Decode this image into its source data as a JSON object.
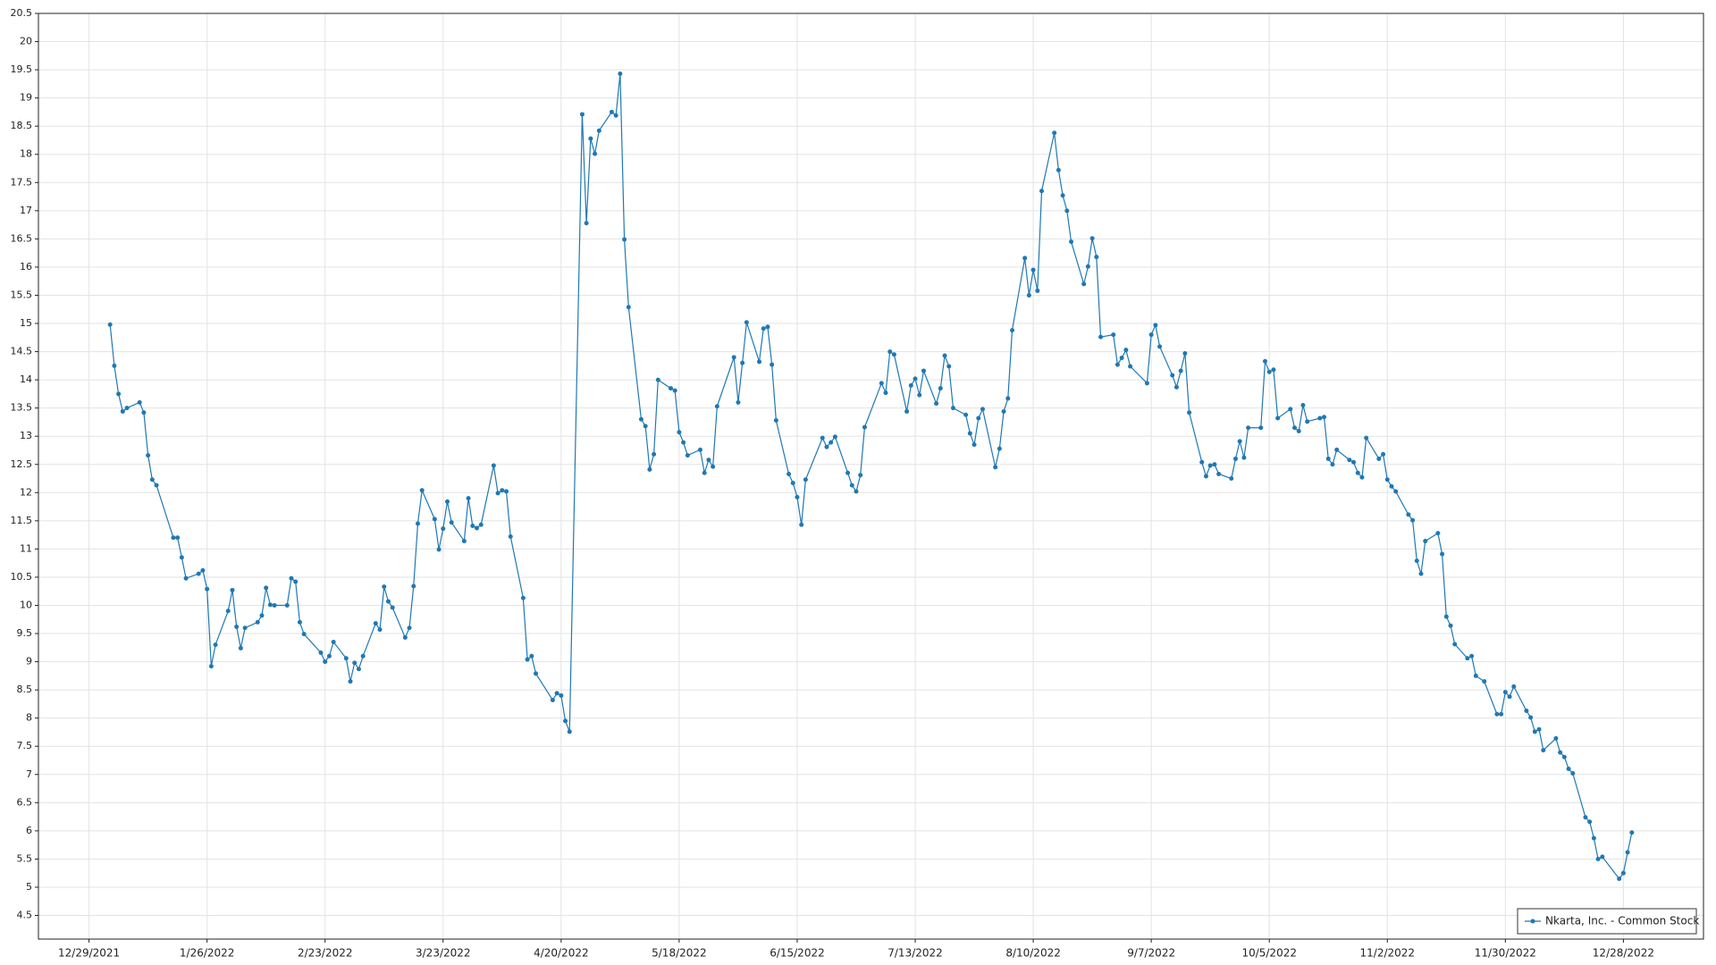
{
  "chart_data": {
    "type": "line",
    "x": [
      "2022-01-03",
      "2022-01-04",
      "2022-01-05",
      "2022-01-06",
      "2022-01-07",
      "2022-01-10",
      "2022-01-11",
      "2022-01-12",
      "2022-01-13",
      "2022-01-14",
      "2022-01-18",
      "2022-01-19",
      "2022-01-20",
      "2022-01-21",
      "2022-01-24",
      "2022-01-25",
      "2022-01-26",
      "2022-01-27",
      "2022-01-28",
      "2022-01-31",
      "2022-02-01",
      "2022-02-02",
      "2022-02-03",
      "2022-02-04",
      "2022-02-07",
      "2022-02-08",
      "2022-02-09",
      "2022-02-10",
      "2022-02-11",
      "2022-02-14",
      "2022-02-15",
      "2022-02-16",
      "2022-02-17",
      "2022-02-18",
      "2022-02-22",
      "2022-02-23",
      "2022-02-24",
      "2022-02-25",
      "2022-02-28",
      "2022-03-01",
      "2022-03-02",
      "2022-03-03",
      "2022-03-04",
      "2022-03-07",
      "2022-03-08",
      "2022-03-09",
      "2022-03-10",
      "2022-03-11",
      "2022-03-14",
      "2022-03-15",
      "2022-03-16",
      "2022-03-17",
      "2022-03-18",
      "2022-03-21",
      "2022-03-22",
      "2022-03-23",
      "2022-03-24",
      "2022-03-25",
      "2022-03-28",
      "2022-03-29",
      "2022-03-30",
      "2022-03-31",
      "2022-04-01",
      "2022-04-04",
      "2022-04-05",
      "2022-04-06",
      "2022-04-07",
      "2022-04-08",
      "2022-04-11",
      "2022-04-12",
      "2022-04-13",
      "2022-04-14",
      "2022-04-18",
      "2022-04-19",
      "2022-04-20",
      "2022-04-21",
      "2022-04-22",
      "2022-04-25",
      "2022-04-26",
      "2022-04-27",
      "2022-04-28",
      "2022-04-29",
      "2022-05-02",
      "2022-05-03",
      "2022-05-04",
      "2022-05-05",
      "2022-05-06",
      "2022-05-09",
      "2022-05-10",
      "2022-05-11",
      "2022-05-12",
      "2022-05-13",
      "2022-05-16",
      "2022-05-17",
      "2022-05-18",
      "2022-05-19",
      "2022-05-20",
      "2022-05-23",
      "2022-05-24",
      "2022-05-25",
      "2022-05-26",
      "2022-05-27",
      "2022-05-31",
      "2022-06-01",
      "2022-06-02",
      "2022-06-03",
      "2022-06-06",
      "2022-06-07",
      "2022-06-08",
      "2022-06-09",
      "2022-06-10",
      "2022-06-13",
      "2022-06-14",
      "2022-06-15",
      "2022-06-16",
      "2022-06-17",
      "2022-06-21",
      "2022-06-22",
      "2022-06-23",
      "2022-06-24",
      "2022-06-27",
      "2022-06-28",
      "2022-06-29",
      "2022-06-30",
      "2022-07-01",
      "2022-07-05",
      "2022-07-06",
      "2022-07-07",
      "2022-07-08",
      "2022-07-11",
      "2022-07-12",
      "2022-07-13",
      "2022-07-14",
      "2022-07-15",
      "2022-07-18",
      "2022-07-19",
      "2022-07-20",
      "2022-07-21",
      "2022-07-22",
      "2022-07-25",
      "2022-07-26",
      "2022-07-27",
      "2022-07-28",
      "2022-07-29",
      "2022-08-01",
      "2022-08-02",
      "2022-08-03",
      "2022-08-04",
      "2022-08-05",
      "2022-08-08",
      "2022-08-09",
      "2022-08-10",
      "2022-08-11",
      "2022-08-12",
      "2022-08-15",
      "2022-08-16",
      "2022-08-17",
      "2022-08-18",
      "2022-08-19",
      "2022-08-22",
      "2022-08-23",
      "2022-08-24",
      "2022-08-25",
      "2022-08-26",
      "2022-08-29",
      "2022-08-30",
      "2022-08-31",
      "2022-09-01",
      "2022-09-02",
      "2022-09-06",
      "2022-09-07",
      "2022-09-08",
      "2022-09-09",
      "2022-09-12",
      "2022-09-13",
      "2022-09-14",
      "2022-09-15",
      "2022-09-16",
      "2022-09-19",
      "2022-09-20",
      "2022-09-21",
      "2022-09-22",
      "2022-09-23",
      "2022-09-26",
      "2022-09-27",
      "2022-09-28",
      "2022-09-29",
      "2022-09-30",
      "2022-10-03",
      "2022-10-04",
      "2022-10-05",
      "2022-10-06",
      "2022-10-07",
      "2022-10-10",
      "2022-10-11",
      "2022-10-12",
      "2022-10-13",
      "2022-10-14",
      "2022-10-17",
      "2022-10-18",
      "2022-10-19",
      "2022-10-20",
      "2022-10-21",
      "2022-10-24",
      "2022-10-25",
      "2022-10-26",
      "2022-10-27",
      "2022-10-28",
      "2022-10-31",
      "2022-11-01",
      "2022-11-02",
      "2022-11-03",
      "2022-11-04",
      "2022-11-07",
      "2022-11-08",
      "2022-11-09",
      "2022-11-10",
      "2022-11-11",
      "2022-11-14",
      "2022-11-15",
      "2022-11-16",
      "2022-11-17",
      "2022-11-18",
      "2022-11-21",
      "2022-11-22",
      "2022-11-23",
      "2022-11-25",
      "2022-11-28",
      "2022-11-29",
      "2022-11-30",
      "2022-12-01",
      "2022-12-02",
      "2022-12-05",
      "2022-12-06",
      "2022-12-07",
      "2022-12-08",
      "2022-12-09",
      "2022-12-12",
      "2022-12-13",
      "2022-12-14",
      "2022-12-15",
      "2022-12-16",
      "2022-12-19",
      "2022-12-20",
      "2022-12-21",
      "2022-12-22",
      "2022-12-23",
      "2022-12-27",
      "2022-12-28",
      "2022-12-29",
      "2022-12-30"
    ],
    "series": [
      {
        "name": "Nkarta, Inc. - Common Stock",
        "color": "#1f78b4",
        "values": [
          14.98,
          14.25,
          13.75,
          13.44,
          13.5,
          13.6,
          13.42,
          12.66,
          12.23,
          12.13,
          11.2,
          11.2,
          10.85,
          10.48,
          10.56,
          10.62,
          10.29,
          8.92,
          9.3,
          9.9,
          10.27,
          9.62,
          9.24,
          9.6,
          9.7,
          9.82,
          10.31,
          10.01,
          10.0,
          10.0,
          10.48,
          10.42,
          9.7,
          9.49,
          9.16,
          9.0,
          9.1,
          9.35,
          9.06,
          8.65,
          8.98,
          8.87,
          9.1,
          9.68,
          9.57,
          10.33,
          10.07,
          9.96,
          9.43,
          9.6,
          10.34,
          11.45,
          12.04,
          11.53,
          10.99,
          11.36,
          11.84,
          11.47,
          11.14,
          11.9,
          11.41,
          11.37,
          11.43,
          12.48,
          11.99,
          12.04,
          12.02,
          11.22,
          10.13,
          9.04,
          9.1,
          8.79,
          8.32,
          8.44,
          8.4,
          7.95,
          7.76,
          18.71,
          16.78,
          18.28,
          18.01,
          18.42,
          18.75,
          18.69,
          19.43,
          16.49,
          15.29,
          13.3,
          13.18,
          12.41,
          12.68,
          14.0,
          13.85,
          13.81,
          13.07,
          12.89,
          12.66,
          12.76,
          12.35,
          12.58,
          12.46,
          13.53,
          14.4,
          13.6,
          14.3,
          15.02,
          14.32,
          14.91,
          14.94,
          14.27,
          13.28,
          12.33,
          12.17,
          11.92,
          11.43,
          12.23,
          12.97,
          12.81,
          12.89,
          12.99,
          12.35,
          12.13,
          12.02,
          12.31,
          13.16,
          13.94,
          13.77,
          14.5,
          14.45,
          13.44,
          13.9,
          14.02,
          13.73,
          14.16,
          13.58,
          13.85,
          14.43,
          14.24,
          13.5,
          13.38,
          13.05,
          12.85,
          13.32,
          13.48,
          12.45,
          12.78,
          13.44,
          13.67,
          14.88,
          16.16,
          15.5,
          15.95,
          15.58,
          17.35,
          18.38,
          17.72,
          17.27,
          17.0,
          16.45,
          15.7,
          16.01,
          16.51,
          16.18,
          14.76,
          14.8,
          14.27,
          14.39,
          14.53,
          14.24,
          13.94,
          14.8,
          14.97,
          14.59,
          14.08,
          13.87,
          14.16,
          14.47,
          13.42,
          12.54,
          12.29,
          12.48,
          12.5,
          12.33,
          12.25,
          12.6,
          12.91,
          12.62,
          13.15,
          13.15,
          14.33,
          14.14,
          14.18,
          13.32,
          13.48,
          13.15,
          13.09,
          13.55,
          13.26,
          13.32,
          13.34,
          12.6,
          12.5,
          12.76,
          12.58,
          12.54,
          12.35,
          12.27,
          12.97,
          12.6,
          12.68,
          12.23,
          12.11,
          12.02,
          11.61,
          11.51,
          10.79,
          10.56,
          11.14,
          11.28,
          10.91,
          9.8,
          9.64,
          9.31,
          9.06,
          9.1,
          8.75,
          8.65,
          8.07,
          8.07,
          8.46,
          8.38,
          8.56,
          8.13,
          8.01,
          7.76,
          7.8,
          7.43,
          7.64,
          7.39,
          7.31,
          7.1,
          7.02,
          6.24,
          6.16,
          5.87,
          5.5,
          5.54,
          5.15,
          5.25,
          5.62,
          5.97
        ]
      }
    ],
    "xlim": [
      "2021-12-17",
      "2023-01-16"
    ],
    "xticks": [
      {
        "value": "2021-12-29",
        "label": "12/29/2021"
      },
      {
        "value": "2022-01-26",
        "label": "1/26/2022"
      },
      {
        "value": "2022-02-23",
        "label": "2/23/2022"
      },
      {
        "value": "2022-03-23",
        "label": "3/23/2022"
      },
      {
        "value": "2022-04-20",
        "label": "4/20/2022"
      },
      {
        "value": "2022-05-18",
        "label": "5/18/2022"
      },
      {
        "value": "2022-06-15",
        "label": "6/15/2022"
      },
      {
        "value": "2022-07-13",
        "label": "7/13/2022"
      },
      {
        "value": "2022-08-10",
        "label": "8/10/2022"
      },
      {
        "value": "2022-09-07",
        "label": "9/7/2022"
      },
      {
        "value": "2022-10-05",
        "label": "10/5/2022"
      },
      {
        "value": "2022-11-02",
        "label": "11/2/2022"
      },
      {
        "value": "2022-11-30",
        "label": "11/30/2022"
      },
      {
        "value": "2022-12-28",
        "label": "12/28/2022"
      }
    ],
    "ylim": [
      4.08,
      20.5
    ],
    "yticks": [
      4.5,
      5,
      5.5,
      6,
      6.5,
      7,
      7.5,
      8,
      8.5,
      9,
      9.5,
      10,
      10.5,
      11,
      11.5,
      12,
      12.5,
      13,
      13.5,
      14,
      14.5,
      15,
      15.5,
      16,
      16.5,
      17,
      17.5,
      18,
      18.5,
      19,
      19.5,
      20,
      20.5
    ],
    "grid": true,
    "legend": "lower right",
    "markers": true
  }
}
